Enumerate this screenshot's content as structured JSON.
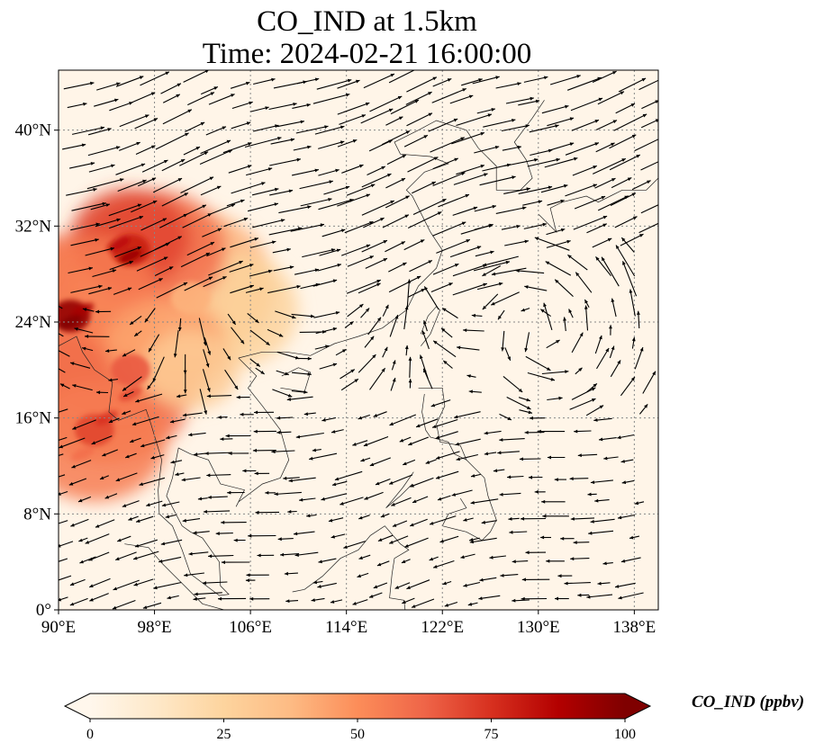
{
  "title_line1": "CO_IND at 1.5km",
  "title_line2": "Time: 2024-02-21 16:00:00",
  "map": {
    "lon_range": [
      90,
      140
    ],
    "lat_range": [
      0,
      45
    ],
    "lon_ticks": [
      {
        "value": 90,
        "label": "90°E"
      },
      {
        "value": 98,
        "label": "98°E"
      },
      {
        "value": 106,
        "label": "106°E"
      },
      {
        "value": 114,
        "label": "114°E"
      },
      {
        "value": 122,
        "label": "122°E"
      },
      {
        "value": 130,
        "label": "130°E"
      },
      {
        "value": 138,
        "label": "138°E"
      }
    ],
    "lat_ticks": [
      {
        "value": 0,
        "label": "0°"
      },
      {
        "value": 8,
        "label": "8°N"
      },
      {
        "value": 16,
        "label": "16°N"
      },
      {
        "value": 24,
        "label": "24°N"
      },
      {
        "value": 32,
        "label": "32°N"
      },
      {
        "value": 40,
        "label": "40°N"
      }
    ],
    "gridlines": "dotted grey",
    "variable": "CO_IND",
    "level": "1.5km",
    "high_concentration_regions": [
      {
        "lon": 91,
        "lat": 24.5,
        "value": 95
      },
      {
        "lon": 96,
        "lat": 30,
        "value": 80
      },
      {
        "lon": 93,
        "lat": 15,
        "value": 70
      },
      {
        "lon": 96,
        "lat": 20,
        "value": 65
      },
      {
        "lon": 101,
        "lat": 26,
        "value": 40
      }
    ]
  },
  "colorbar": {
    "label": "CO_IND (ppbv)",
    "min": 0,
    "max": 100,
    "extend": "both",
    "colormap": "OrRd",
    "ticks": [
      {
        "value": 0,
        "label": "0"
      },
      {
        "value": 25,
        "label": "25"
      },
      {
        "value": 50,
        "label": "50"
      },
      {
        "value": 75,
        "label": "75"
      },
      {
        "value": 100,
        "label": "100"
      }
    ],
    "colors": [
      "#fff7ec",
      "#fee8c8",
      "#fdd49e",
      "#fdbb84",
      "#fc8d59",
      "#ef6548",
      "#d7301f",
      "#b30000",
      "#7f0000"
    ]
  }
}
